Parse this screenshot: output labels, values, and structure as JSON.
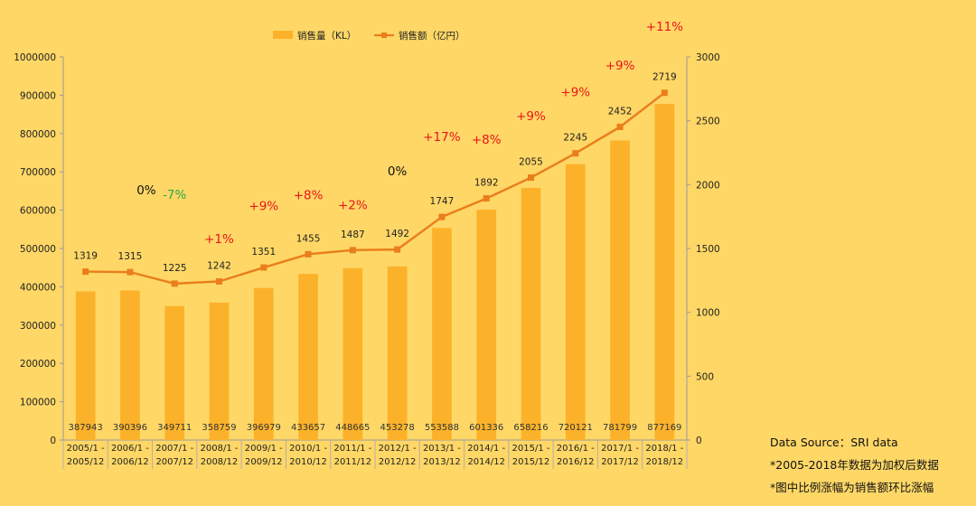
{
  "chart_data": {
    "type": "bar+line",
    "categories": [
      [
        "2005/1 -",
        "2005/12"
      ],
      [
        "2006/1 -",
        "2006/12"
      ],
      [
        "2007/1 -",
        "2007/12"
      ],
      [
        "2008/1 -",
        "2008/12"
      ],
      [
        "2009/1 -",
        "2009/12"
      ],
      [
        "2010/1 -",
        "2010/12"
      ],
      [
        "2011/1 -",
        "2011/12"
      ],
      [
        "2012/1 -",
        "2012/12"
      ],
      [
        "2013/1 -",
        "2013/12"
      ],
      [
        "2014/1 -",
        "2014/12"
      ],
      [
        "2015/1 -",
        "2015/12"
      ],
      [
        "2016/1 -",
        "2016/12"
      ],
      [
        "2017/1 -",
        "2017/12"
      ],
      [
        "2018/1 -",
        "2018/12"
      ]
    ],
    "series": [
      {
        "name": "销售量（KL）",
        "kind": "bar",
        "axis": "left",
        "color": "#FBB22A",
        "values": [
          387943,
          390396,
          349711,
          358759,
          396979,
          433657,
          448665,
          453278,
          553588,
          601336,
          658216,
          720121,
          781799,
          877169
        ]
      },
      {
        "name": "销售额（亿円）",
        "kind": "line",
        "axis": "right",
        "color": "#E97E1B",
        "values": [
          1319,
          1315,
          1225,
          1242,
          1351,
          1455,
          1487,
          1492,
          1747,
          1892,
          2055,
          2245,
          2452,
          2719
        ]
      }
    ],
    "growth_labels": [
      {
        "index": 1,
        "text": "0%",
        "value": 0
      },
      {
        "index": 2,
        "text": "-7%",
        "value": -7
      },
      {
        "index": 3,
        "text": "+1%",
        "value": 1
      },
      {
        "index": 4,
        "text": "+9%",
        "value": 9
      },
      {
        "index": 5,
        "text": "+8%",
        "value": 8
      },
      {
        "index": 6,
        "text": "+2%",
        "value": 2
      },
      {
        "index": 7,
        "text": "0%",
        "value": 0
      },
      {
        "index": 8,
        "text": "+17%",
        "value": 17
      },
      {
        "index": 9,
        "text": "+8%",
        "value": 8
      },
      {
        "index": 10,
        "text": "+9%",
        "value": 9
      },
      {
        "index": 11,
        "text": "+9%",
        "value": 9
      },
      {
        "index": 12,
        "text": "+9%",
        "value": 9
      },
      {
        "index": 13,
        "text": "+11%",
        "value": 11
      }
    ],
    "y_left": {
      "min": 0,
      "max": 1000000,
      "step": 100000
    },
    "y_right": {
      "min": 0,
      "max": 3000,
      "step": 500
    },
    "legend_position": "top-center",
    "grid": false,
    "colors": {
      "background": "#FFD766",
      "growth_positive": "#E8151B",
      "growth_negative": "#2EA84A",
      "growth_zero": "#111111"
    }
  },
  "notes": {
    "source": "Data Source：SRI data",
    "note1": "*2005-2018年数据为加权后数据",
    "note2": "*图中比例涨幅为销售额环比涨幅"
  }
}
